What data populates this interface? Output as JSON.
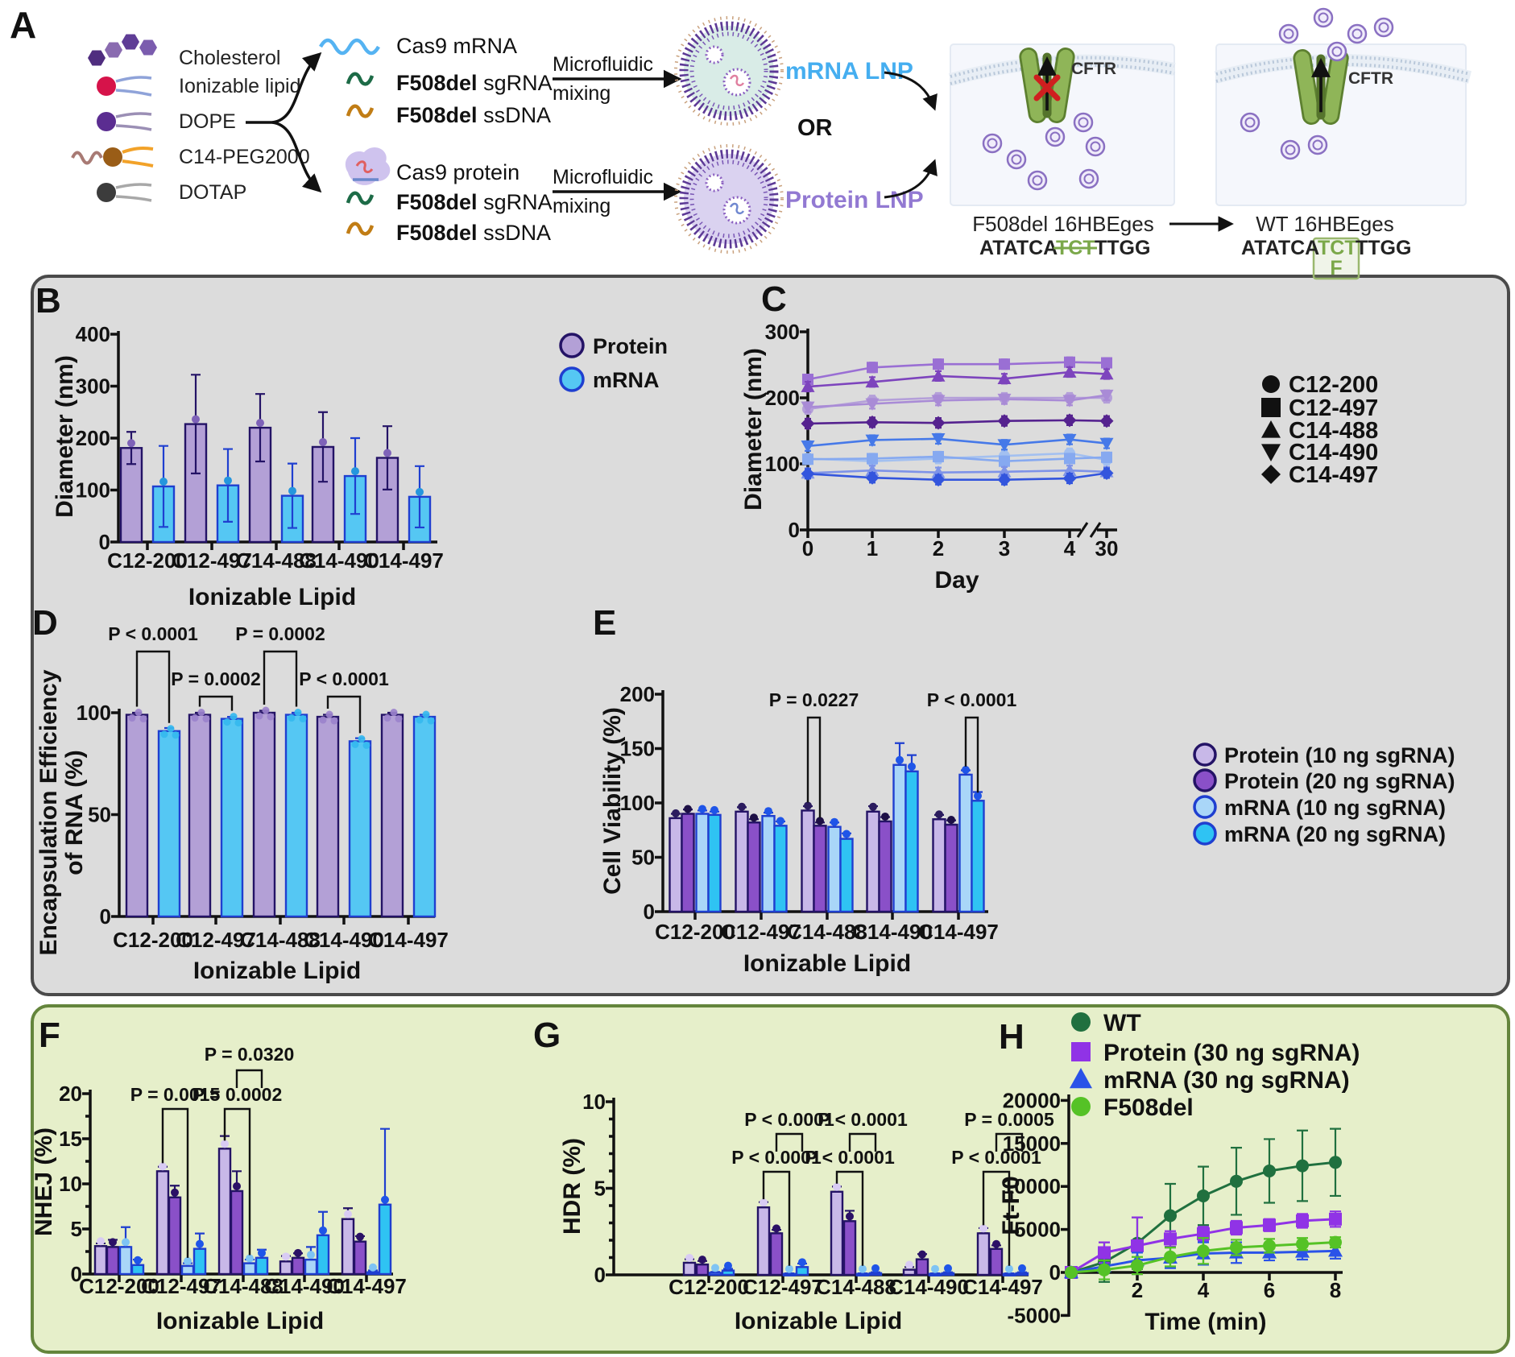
{
  "figure_letters": {
    "a": "A",
    "b": "B",
    "c": "C",
    "d": "D",
    "e": "E",
    "f": "F",
    "g": "G",
    "h": "H"
  },
  "panel_a": {
    "lipids": [
      {
        "label": "Cholesterol"
      },
      {
        "label": "Ionizable lipid"
      },
      {
        "label": "DOPE"
      },
      {
        "label": "C14-PEG2000"
      },
      {
        "label": "DOTAP"
      }
    ],
    "mrna_cargo": {
      "item1": "Cas9 mRNA",
      "item2_bold": "F508del",
      "item2_rest": " sgRNA",
      "item3_bold": "F508del",
      "item3_rest": " ssDNA"
    },
    "protein_cargo": {
      "item1": "Cas9 protein",
      "item2_bold": "F508del",
      "item2_rest": " sgRNA",
      "item3_bold": "F508del",
      "item3_rest": " ssDNA"
    },
    "microfluidic_line1": "Microfluidic",
    "microfluidic_line2": "mixing",
    "mrna_lnp_label": "mRNA LNP",
    "or_label": "OR",
    "protein_lnp_label": "Protein LNP",
    "cftr_label": "CFTR",
    "left_cell": {
      "title": "F508del 16HBEges",
      "seq_prefix": "ATATCA",
      "seq_deleted": "TCT",
      "seq_suffix": "TTGG"
    },
    "right_cell": {
      "title": "WT 16HBEges",
      "seq_prefix": "ATATCA",
      "seq_inserted": "TCT",
      "seq_suffix": "TTGG",
      "restored_residue": "F"
    },
    "colors": {
      "mrna_lnp": "#45aef0",
      "protein_lnp": "#9279d2",
      "seq_green": "#7ba84a"
    }
  },
  "chart_data": [
    {
      "id": "B",
      "type": "bar",
      "ylabel": [
        "Diameter (nm)"
      ],
      "xlabel": "Ionizable Lipid",
      "ylim": [
        0,
        400
      ],
      "yticks": [
        0,
        100,
        200,
        300,
        400
      ],
      "categories": [
        "C12-200",
        "C12-497",
        "C14-488",
        "C14-490",
        "C14-497"
      ],
      "series": [
        {
          "name": "Protein",
          "fill": "#b3a0d6",
          "edge": "#241366",
          "dot": "#7e62b8",
          "values": [
            181,
            227,
            220,
            183,
            162
          ],
          "errors": [
            31,
            95,
            65,
            67,
            61
          ]
        },
        {
          "name": "mRNA",
          "fill": "#55c7f3",
          "edge": "#1f3fd0",
          "dot": "#2596dd",
          "values": [
            107,
            109,
            89,
            127,
            87
          ],
          "errors": [
            78,
            70,
            62,
            73,
            59
          ]
        }
      ],
      "legend": [
        {
          "label": "Protein",
          "fill": "#b3a0d6",
          "edge": "#241366"
        },
        {
          "label": "mRNA",
          "fill": "#55c7f3",
          "edge": "#1f3fd0"
        }
      ]
    },
    {
      "id": "C",
      "type": "line",
      "ylabel": [
        "Diameter (nm)"
      ],
      "xlabel": "Day",
      "ylim": [
        0,
        300
      ],
      "yticks": [
        0,
        100,
        200,
        300
      ],
      "x": [
        0,
        1,
        2,
        3,
        4,
        30
      ],
      "xtick_labels": [
        "0",
        "1",
        "2",
        "3",
        "4",
        "30"
      ],
      "axis_break_between": [
        4,
        30
      ],
      "series": [
        {
          "name": "C12-200 Protein",
          "marker": "circle",
          "color": "#b49fd9",
          "values": [
            183,
            196,
            200,
            200,
            200,
            200
          ]
        },
        {
          "name": "C12-497 Protein",
          "marker": "square",
          "color": "#9a6fd4",
          "values": [
            228,
            246,
            251,
            251,
            254,
            253
          ]
        },
        {
          "name": "C14-488 Protein",
          "marker": "triangle",
          "color": "#7d44bd",
          "values": [
            217,
            224,
            233,
            229,
            239,
            236
          ]
        },
        {
          "name": "C14-490 Protein",
          "marker": "triangle-down",
          "color": "#a98bd6",
          "values": [
            186,
            191,
            196,
            198,
            196,
            204
          ]
        },
        {
          "name": "C14-497 Protein",
          "marker": "diamond",
          "color": "#55228f",
          "values": [
            161,
            163,
            162,
            165,
            166,
            165
          ]
        },
        {
          "name": "C12-200 mRNA",
          "marker": "circle",
          "color": "#a3c0f0",
          "values": [
            108,
            104,
            108,
            112,
            116,
            106
          ]
        },
        {
          "name": "C12-497 mRNA",
          "marker": "square",
          "color": "#86a9f0",
          "values": [
            107,
            108,
            111,
            104,
            108,
            110
          ]
        },
        {
          "name": "C14-488 mRNA",
          "marker": "triangle",
          "color": "#7e93e8",
          "values": [
            86,
            90,
            87,
            88,
            90,
            88
          ]
        },
        {
          "name": "C14-490 mRNA",
          "marker": "triangle-down",
          "color": "#4679e8",
          "values": [
            127,
            136,
            138,
            129,
            137,
            131
          ]
        },
        {
          "name": "C14-497 mRNA",
          "marker": "diamond",
          "color": "#3355dd",
          "values": [
            85,
            79,
            76,
            76,
            78,
            86
          ]
        }
      ],
      "legend": [
        {
          "label": "C12-200",
          "marker": "circle"
        },
        {
          "label": "C12-497",
          "marker": "square"
        },
        {
          "label": "C14-488",
          "marker": "triangle"
        },
        {
          "label": "C14-490",
          "marker": "triangle-down"
        },
        {
          "label": "C14-497",
          "marker": "diamond"
        }
      ]
    },
    {
      "id": "D",
      "type": "bar",
      "ylabel": [
        "Encapsulation Efficiency",
        "of RNA (%)"
      ],
      "xlabel": "Ionizable Lipid",
      "ylim": [
        0,
        100
      ],
      "yticks": [
        0,
        50,
        100
      ],
      "categories": [
        "C12-200",
        "C12-497",
        "C14-488",
        "C14-490",
        "C14-497"
      ],
      "series": [
        {
          "name": "Protein",
          "fill": "#b3a0d6",
          "edge": "#241366",
          "dot": "#9b82cc",
          "values": [
            99,
            99,
            100,
            98,
            99
          ],
          "errors": [
            1,
            1,
            1,
            1,
            1
          ]
        },
        {
          "name": "mRNA",
          "fill": "#55c7f3",
          "edge": "#1f3fd0",
          "dot": "#35b8ef",
          "values": [
            91,
            97,
            99,
            86,
            98
          ],
          "errors": [
            1.5,
            1,
            1,
            1.5,
            1
          ]
        }
      ],
      "pvalues": [
        {
          "label": "P < 0.0001",
          "cat": 0,
          "bar1": 0,
          "bar2": 1,
          "level": "tall"
        },
        {
          "label": "P = 0.0002",
          "cat": 1,
          "bar1": 0,
          "bar2": 1,
          "level": "short"
        },
        {
          "label": "P = 0.0002",
          "cat": 2,
          "bar1": 0,
          "bar2": 1,
          "level": "tall"
        },
        {
          "label": "P < 0.0001",
          "cat": 3,
          "bar1": 0,
          "bar2": 1,
          "level": "short"
        }
      ]
    },
    {
      "id": "E",
      "type": "bar",
      "ylabel": [
        "Cell Viability (%)"
      ],
      "xlabel": "Ionizable Lipid",
      "ylim": [
        0,
        200
      ],
      "yticks": [
        0,
        50,
        100,
        150,
        200
      ],
      "categories": [
        "C12-200",
        "C12-497",
        "C14-488",
        "C14-490",
        "C14-497"
      ],
      "series": [
        {
          "name": "Protein (10 ng sgRNA)",
          "fill": "#c8b8e8",
          "edge": "#241366",
          "dot": "#2b1c5e",
          "values": [
            86,
            92,
            93,
            92,
            85
          ],
          "errors": [
            4,
            4,
            4,
            5,
            4
          ]
        },
        {
          "name": "Protein (20 ng sgRNA)",
          "fill": "#8a50c8",
          "edge": "#241366",
          "dot": "#1d0f45",
          "values": [
            90,
            82,
            79,
            83,
            80
          ],
          "errors": [
            4,
            3,
            3,
            4,
            4
          ]
        },
        {
          "name": "mRNA  (10 ng sgRNA)",
          "fill": "#a9d6f8",
          "edge": "#1f3fd0",
          "dot": "#1f55e8",
          "values": [
            90,
            88,
            78,
            135,
            126
          ],
          "errors": [
            3,
            3,
            4,
            20,
            4
          ]
        },
        {
          "name": "mRNA  (20 ng sgRNA)",
          "fill": "#2fc3f3",
          "edge": "#1f3fd0",
          "dot": "#1f55e8",
          "values": [
            89,
            79,
            67,
            129,
            102
          ],
          "errors": [
            3,
            4,
            5,
            15,
            8
          ]
        }
      ],
      "pvalues": [
        {
          "label": "P = 0.0227",
          "cat": 2,
          "bar1": 0,
          "bar2": 1,
          "level": "tall"
        },
        {
          "label": "P < 0.0001",
          "cat": 4,
          "bar1": 2,
          "bar2": 3,
          "level": "tall"
        }
      ],
      "legend": [
        {
          "label": "Protein (10 ng sgRNA)",
          "fill": "#c8b8e8",
          "edge": "#241366"
        },
        {
          "label": "Protein (20 ng sgRNA)",
          "fill": "#8a50c8",
          "edge": "#241366"
        },
        {
          "label": "mRNA  (10 ng sgRNA)",
          "fill": "#a9d6f8",
          "edge": "#1f3fd0"
        },
        {
          "label": "mRNA  (20 ng sgRNA)",
          "fill": "#2fc3f3",
          "edge": "#1f3fd0"
        }
      ]
    },
    {
      "id": "F",
      "type": "bar",
      "ylabel": [
        "NHEJ (%)"
      ],
      "xlabel": "Ionizable Lipid",
      "ylim": [
        0,
        20
      ],
      "yticks": [
        0,
        5,
        10,
        15,
        20
      ],
      "categories": [
        "C12-200",
        "C12-497",
        "C14-488",
        "C14-490",
        "C14-497"
      ],
      "series": [
        {
          "name": "Protein (10 ng sgRNA)",
          "fill": "#c8b8e8",
          "edge": "#241366",
          "dot": "#d8cbf4",
          "values": [
            3.1,
            11.4,
            13.9,
            1.4,
            6.1
          ],
          "errors": [
            0.3,
            0.5,
            1.4,
            0.6,
            1.2
          ]
        },
        {
          "name": "Protein (20 ng sgRNA)",
          "fill": "#8a50c8",
          "edge": "#241366",
          "dot": "#2b1166",
          "values": [
            3.0,
            8.5,
            9.2,
            1.8,
            3.6
          ],
          "errors": [
            0.8,
            1.3,
            2.2,
            0.5,
            0.6
          ]
        },
        {
          "name": "mRNA (10 ng sgRNA)",
          "fill": "#a9d6f8",
          "edge": "#1f3fd0",
          "dot": "#7fc4f4",
          "values": [
            3.0,
            0.9,
            1.2,
            1.6,
            0.2
          ],
          "errors": [
            2.2,
            0.3,
            0.4,
            1.4,
            0.2
          ]
        },
        {
          "name": "mRNA (20 ng sgRNA)",
          "fill": "#2fc3f3",
          "edge": "#1f3fd0",
          "dot": "#1f55e8",
          "values": [
            1.0,
            2.8,
            1.8,
            4.3,
            7.7
          ],
          "errors": [
            0.6,
            1.7,
            0.9,
            2.6,
            8.4
          ]
        }
      ],
      "pvalues": [
        {
          "label": "P = 0.0015",
          "cat": 1,
          "bar1": 0,
          "bar2": 2,
          "level": "lower"
        },
        {
          "label": "P = 0.0002",
          "cat": 2,
          "bar1": 0,
          "bar2": 2,
          "level": "lower"
        },
        {
          "label": "P = 0.0320",
          "cat": 2,
          "bar1": 1,
          "bar2": 3,
          "level": "upper"
        }
      ]
    },
    {
      "id": "G",
      "type": "bar",
      "ylabel": [
        "HDR (%)"
      ],
      "xlabel": "Ionizable Lipid",
      "ylim": [
        0,
        10
      ],
      "yticks": [
        0,
        5,
        10
      ],
      "categories": [
        "C12-200",
        "C12-497",
        "C14-488",
        "C14-490",
        "C14-497"
      ],
      "series": [
        {
          "name": "Protein (10 ng sgRNA)",
          "fill": "#c8b8e8",
          "edge": "#241366",
          "dot": "#d8cbf4",
          "values": [
            0.7,
            3.9,
            4.8,
            0.3,
            2.4
          ],
          "errors": [
            0.2,
            0.3,
            0.3,
            0.15,
            0.3
          ]
        },
        {
          "name": "Protein (20 ng sgRNA)",
          "fill": "#8a50c8",
          "edge": "#241366",
          "dot": "#2b1166",
          "values": [
            0.6,
            2.4,
            3.1,
            0.9,
            1.5
          ],
          "errors": [
            0.2,
            0.2,
            0.6,
            0.3,
            0.2
          ]
        },
        {
          "name": "mRNA (10 ng sgRNA)",
          "fill": "#a9d6f8",
          "edge": "#1f3fd0",
          "dot": "#7fc4f4",
          "values": [
            0.12,
            0.06,
            0.06,
            0.06,
            0.06
          ],
          "errors": [
            0.05,
            0.03,
            0.03,
            0.03,
            0.03
          ]
        },
        {
          "name": "mRNA (20 ng sgRNA)",
          "fill": "#2fc3f3",
          "edge": "#1f3fd0",
          "dot": "#1f55e8",
          "values": [
            0.25,
            0.45,
            0.1,
            0.1,
            0.1
          ],
          "errors": [
            0.1,
            0.2,
            0.05,
            0.05,
            0.05
          ]
        }
      ],
      "pvalues": [
        {
          "label": "P < 0.0001",
          "cat": 1,
          "bar1": 0,
          "bar2": 2,
          "level": "lower"
        },
        {
          "label": "P < 0.0001",
          "cat": 1,
          "bar1": 1,
          "bar2": 3,
          "level": "upper"
        },
        {
          "label": "P < 0.0001",
          "cat": 2,
          "bar1": 0,
          "bar2": 2,
          "level": "lower"
        },
        {
          "label": "P < 0.0001",
          "cat": 2,
          "bar1": 1,
          "bar2": 3,
          "level": "upper"
        },
        {
          "label": "P < 0.0001",
          "cat": 4,
          "bar1": 0,
          "bar2": 2,
          "level": "lower"
        },
        {
          "label": "P = 0.0005",
          "cat": 4,
          "bar1": 1,
          "bar2": 3,
          "level": "upper"
        }
      ]
    },
    {
      "id": "H",
      "type": "line",
      "ylabel": [
        "Ft-F0"
      ],
      "xlabel": "Time (min)",
      "ylim": [
        -5000,
        20000
      ],
      "yticks": [
        -5000,
        0,
        5000,
        10000,
        15000,
        20000
      ],
      "x": [
        0,
        1,
        2,
        3,
        4,
        5,
        6,
        7,
        8
      ],
      "xticks": [
        2,
        4,
        6,
        8
      ],
      "series": [
        {
          "name": "WT",
          "marker": "circle",
          "color": "#20703f",
          "values": [
            0,
            1200,
            3400,
            6600,
            8900,
            10600,
            11800,
            12400,
            12800
          ],
          "errors": [
            300,
            2300,
            3000,
            3700,
            3400,
            3900,
            3700,
            4100,
            3900
          ]
        },
        {
          "name": "Protein (30 ng sgRNA)",
          "marker": "square",
          "color": "#9033e6",
          "values": [
            0,
            2300,
            3100,
            3900,
            4500,
            5200,
            5500,
            6000,
            6200
          ],
          "errors": [
            300,
            1200,
            3300,
            900,
            800,
            800,
            700,
            800,
            900
          ]
        },
        {
          "name": "mRNA  (30 ng sgRNA)",
          "marker": "triangle",
          "color": "#2a52e8",
          "values": [
            0,
            700,
            1400,
            1700,
            2200,
            2300,
            2300,
            2400,
            2500
          ],
          "errors": [
            300,
            700,
            900,
            1200,
            1300,
            1200,
            900,
            900,
            900
          ]
        },
        {
          "name": "F508del",
          "marker": "circle",
          "color": "#55c226",
          "values": [
            0,
            300,
            800,
            1800,
            2500,
            2900,
            3100,
            3300,
            3500
          ],
          "errors": [
            300,
            1100,
            1000,
            1100,
            1500,
            900,
            800,
            700,
            600
          ]
        }
      ],
      "legend": [
        {
          "label": "WT",
          "marker": "circle",
          "color": "#20703f"
        },
        {
          "label": "Protein (30 ng sgRNA)",
          "marker": "square",
          "color": "#9033e6"
        },
        {
          "label": "mRNA  (30 ng sgRNA)",
          "marker": "triangle",
          "color": "#2a52e8"
        },
        {
          "label": "F508del",
          "marker": "circle",
          "color": "#55c226"
        }
      ]
    }
  ]
}
